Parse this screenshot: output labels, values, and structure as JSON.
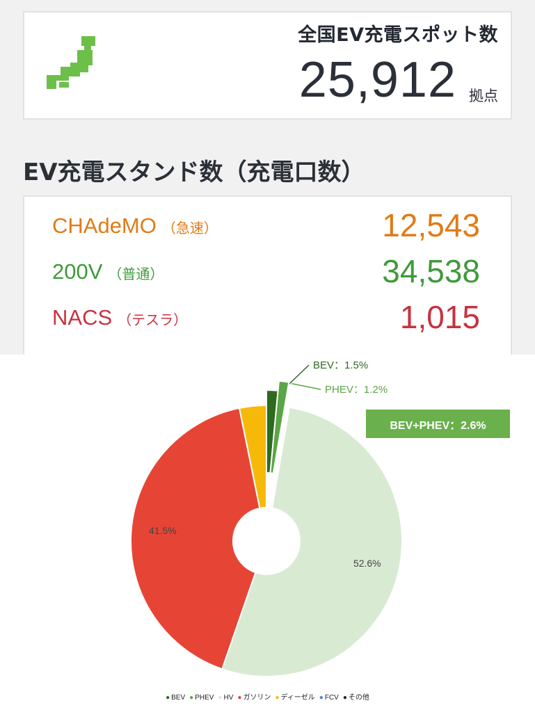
{
  "summary": {
    "title": "全国EV充電スポット数",
    "value": "25,912",
    "unit": "拠点"
  },
  "stands": {
    "title": "EV充電スタンド数（充電口数）",
    "rows": [
      {
        "name": "CHAdeMO",
        "sub": "（急速）",
        "value": "12,543",
        "color": "#e07b16"
      },
      {
        "name": "200V",
        "sub": "（普通）",
        "value": "34,538",
        "color": "#3f9a3a"
      },
      {
        "name": "NACS",
        "sub": "（テスラ）",
        "value": "1,015",
        "color": "#c8323f"
      }
    ]
  },
  "colors": {
    "japan_icon": "#6cc04a"
  },
  "chart_data": {
    "type": "pie",
    "donut": true,
    "slices": [
      {
        "name": "BEV",
        "value": 1.5,
        "color": "#2e6b1f",
        "label": "BEV：1.5%",
        "exploded": true
      },
      {
        "name": "PHEV",
        "value": 1.2,
        "color": "#5aa545",
        "label": "PHEV：1.2%",
        "exploded": true
      },
      {
        "name": "HV",
        "value": 52.6,
        "color": "#d9ead3",
        "label": "52.6%"
      },
      {
        "name": "ガソリン",
        "value": 41.5,
        "color": "#e64535",
        "label": "41.5%"
      },
      {
        "name": "ディーゼル",
        "value": 3.2,
        "color": "#f6b90a",
        "label": ""
      }
    ],
    "callout": "BEV+PHEV：2.6%",
    "legend": [
      {
        "name": "BEV",
        "color": "#2e6b1f"
      },
      {
        "name": "PHEV",
        "color": "#5aa545"
      },
      {
        "name": "HV",
        "color": "#d9ead3"
      },
      {
        "name": "ガソリン",
        "color": "#e64535"
      },
      {
        "name": "ディーゼル",
        "color": "#f6b90a"
      },
      {
        "name": "FCV",
        "color": "#4a7fd4"
      },
      {
        "name": "その他",
        "color": "#222222"
      }
    ]
  }
}
